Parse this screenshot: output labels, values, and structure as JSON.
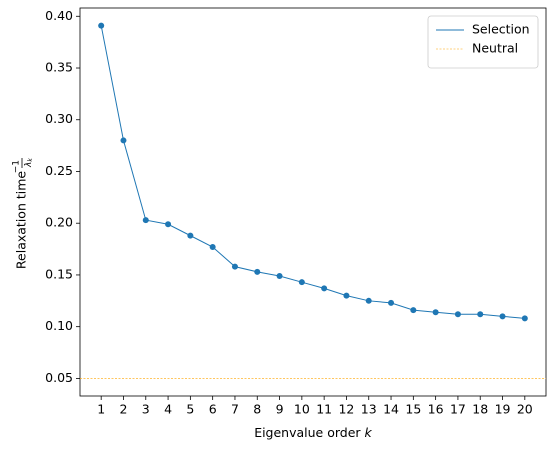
{
  "chart_data": {
    "type": "line",
    "xlabel": "Eigenvalue order",
    "xlabel_var": "k",
    "ylabel": "Relaxation time",
    "ylabel_numerator": "−1",
    "ylabel_denominator": "λ",
    "ylabel_denominator_sub": "k",
    "x": [
      1,
      2,
      3,
      4,
      5,
      6,
      7,
      8,
      9,
      10,
      11,
      12,
      13,
      14,
      15,
      16,
      17,
      18,
      19,
      20
    ],
    "series": [
      {
        "name": "Selection",
        "color": "#1f77b4",
        "values": [
          0.391,
          0.28,
          0.203,
          0.199,
          0.188,
          0.177,
          0.158,
          0.153,
          0.149,
          0.143,
          0.137,
          0.13,
          0.125,
          0.123,
          0.116,
          0.114,
          0.112,
          0.112,
          0.11,
          0.108
        ]
      },
      {
        "name": "Neutral",
        "color": "#ffa500",
        "y": 0.05
      }
    ],
    "xlim": [
      0.05,
      20.95
    ],
    "xticks": [
      1,
      2,
      3,
      4,
      5,
      6,
      7,
      8,
      9,
      10,
      11,
      12,
      13,
      14,
      15,
      16,
      17,
      18,
      19,
      20
    ],
    "ylim": [
      0.033,
      0.408
    ],
    "yticks": [
      {
        "value": 0.05,
        "label": "0.05"
      },
      {
        "value": 0.1,
        "label": "0.10"
      },
      {
        "value": 0.15,
        "label": "0.15"
      },
      {
        "value": 0.2,
        "label": "0.20"
      },
      {
        "value": 0.25,
        "label": "0.25"
      },
      {
        "value": 0.3,
        "label": "0.30"
      },
      {
        "value": 0.35,
        "label": "0.35"
      },
      {
        "value": 0.4,
        "label": "0.40"
      }
    ],
    "legend": "upper right"
  }
}
